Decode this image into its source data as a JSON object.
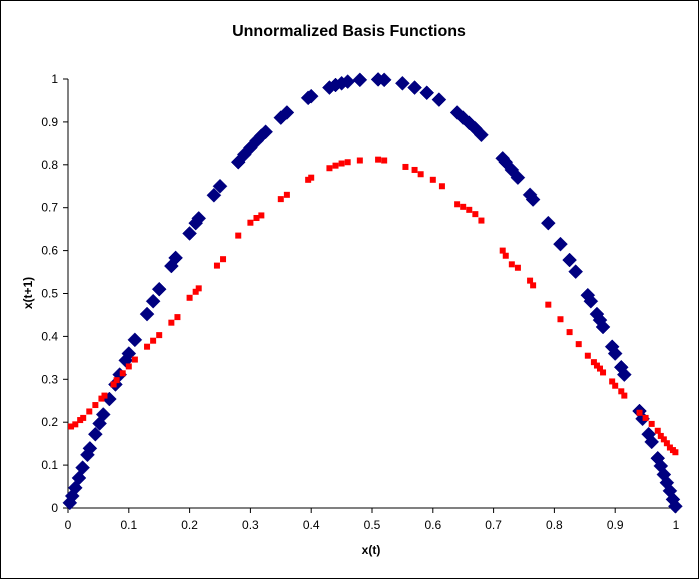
{
  "chart_data": {
    "type": "scatter",
    "title": "Unnormalized Basis Functions",
    "xlabel": "x(t)",
    "ylabel": "x(t+1)",
    "xlim": [
      0,
      1
    ],
    "ylim": [
      0,
      1
    ],
    "x_ticks": [
      "0",
      "0.1",
      "0.2",
      "0.3",
      "0.4",
      "0.5",
      "0.6",
      "0.7",
      "0.8",
      "0.9",
      "1"
    ],
    "y_ticks": [
      "0",
      "0.1",
      "0.2",
      "0.3",
      "0.4",
      "0.5",
      "0.6",
      "0.7",
      "0.8",
      "0.9",
      "1"
    ],
    "grid": false,
    "legend": "none",
    "series": [
      {
        "marker": "diamond",
        "color": "#000080",
        "points": [
          [
            0.003,
            0.012
          ],
          [
            0.007,
            0.028
          ],
          [
            0.012,
            0.047
          ],
          [
            0.018,
            0.07
          ],
          [
            0.024,
            0.094
          ],
          [
            0.032,
            0.124
          ],
          [
            0.036,
            0.139
          ],
          [
            0.045,
            0.172
          ],
          [
            0.052,
            0.197
          ],
          [
            0.058,
            0.218
          ],
          [
            0.068,
            0.254
          ],
          [
            0.078,
            0.288
          ],
          [
            0.085,
            0.311
          ],
          [
            0.095,
            0.344
          ],
          [
            0.1,
            0.36
          ],
          [
            0.11,
            0.392
          ],
          [
            0.13,
            0.452
          ],
          [
            0.14,
            0.482
          ],
          [
            0.15,
            0.51
          ],
          [
            0.17,
            0.564
          ],
          [
            0.177,
            0.583
          ],
          [
            0.2,
            0.64
          ],
          [
            0.21,
            0.664
          ],
          [
            0.215,
            0.675
          ],
          [
            0.24,
            0.729
          ],
          [
            0.25,
            0.75
          ],
          [
            0.28,
            0.806
          ],
          [
            0.29,
            0.824
          ],
          [
            0.3,
            0.84
          ],
          [
            0.31,
            0.856
          ],
          [
            0.318,
            0.868
          ],
          [
            0.325,
            0.877
          ],
          [
            0.35,
            0.91
          ],
          [
            0.36,
            0.922
          ],
          [
            0.395,
            0.956
          ],
          [
            0.4,
            0.96
          ],
          [
            0.43,
            0.98
          ],
          [
            0.44,
            0.986
          ],
          [
            0.45,
            0.99
          ],
          [
            0.46,
            0.994
          ],
          [
            0.48,
            0.998
          ],
          [
            0.51,
            0.999
          ],
          [
            0.52,
            0.998
          ],
          [
            0.55,
            0.99
          ],
          [
            0.57,
            0.98
          ],
          [
            0.59,
            0.968
          ],
          [
            0.61,
            0.952
          ],
          [
            0.64,
            0.922
          ],
          [
            0.65,
            0.91
          ],
          [
            0.66,
            0.898
          ],
          [
            0.67,
            0.885
          ],
          [
            0.68,
            0.87
          ],
          [
            0.715,
            0.815
          ],
          [
            0.72,
            0.806
          ],
          [
            0.73,
            0.788
          ],
          [
            0.74,
            0.77
          ],
          [
            0.76,
            0.73
          ],
          [
            0.765,
            0.719
          ],
          [
            0.79,
            0.664
          ],
          [
            0.81,
            0.615
          ],
          [
            0.825,
            0.578
          ],
          [
            0.835,
            0.551
          ],
          [
            0.855,
            0.496
          ],
          [
            0.86,
            0.482
          ],
          [
            0.87,
            0.452
          ],
          [
            0.875,
            0.438
          ],
          [
            0.88,
            0.422
          ],
          [
            0.895,
            0.376
          ],
          [
            0.9,
            0.36
          ],
          [
            0.91,
            0.328
          ],
          [
            0.915,
            0.311
          ],
          [
            0.94,
            0.226
          ],
          [
            0.945,
            0.208
          ],
          [
            0.955,
            0.172
          ],
          [
            0.96,
            0.154
          ],
          [
            0.97,
            0.116
          ],
          [
            0.975,
            0.098
          ],
          [
            0.98,
            0.078
          ],
          [
            0.985,
            0.059
          ],
          [
            0.99,
            0.04
          ],
          [
            0.995,
            0.02
          ],
          [
            0.999,
            0.004
          ]
        ]
      },
      {
        "marker": "square",
        "color": "#FF0000",
        "points": [
          [
            0.005,
            0.19
          ],
          [
            0.012,
            0.195
          ],
          [
            0.02,
            0.205
          ],
          [
            0.025,
            0.21
          ],
          [
            0.035,
            0.225
          ],
          [
            0.045,
            0.24
          ],
          [
            0.055,
            0.255
          ],
          [
            0.06,
            0.262
          ],
          [
            0.075,
            0.288
          ],
          [
            0.08,
            0.298
          ],
          [
            0.09,
            0.314
          ],
          [
            0.1,
            0.33
          ],
          [
            0.11,
            0.346
          ],
          [
            0.13,
            0.376
          ],
          [
            0.14,
            0.39
          ],
          [
            0.15,
            0.403
          ],
          [
            0.17,
            0.432
          ],
          [
            0.18,
            0.445
          ],
          [
            0.2,
            0.49
          ],
          [
            0.21,
            0.504
          ],
          [
            0.215,
            0.512
          ],
          [
            0.245,
            0.565
          ],
          [
            0.255,
            0.58
          ],
          [
            0.28,
            0.635
          ],
          [
            0.3,
            0.665
          ],
          [
            0.31,
            0.676
          ],
          [
            0.318,
            0.682
          ],
          [
            0.35,
            0.72
          ],
          [
            0.36,
            0.73
          ],
          [
            0.395,
            0.765
          ],
          [
            0.4,
            0.77
          ],
          [
            0.43,
            0.792
          ],
          [
            0.44,
            0.798
          ],
          [
            0.45,
            0.803
          ],
          [
            0.46,
            0.806
          ],
          [
            0.48,
            0.81
          ],
          [
            0.51,
            0.812
          ],
          [
            0.52,
            0.81
          ],
          [
            0.555,
            0.795
          ],
          [
            0.57,
            0.788
          ],
          [
            0.58,
            0.778
          ],
          [
            0.6,
            0.765
          ],
          [
            0.615,
            0.75
          ],
          [
            0.64,
            0.708
          ],
          [
            0.65,
            0.702
          ],
          [
            0.66,
            0.695
          ],
          [
            0.67,
            0.685
          ],
          [
            0.68,
            0.67
          ],
          [
            0.715,
            0.6
          ],
          [
            0.72,
            0.588
          ],
          [
            0.73,
            0.568
          ],
          [
            0.74,
            0.56
          ],
          [
            0.76,
            0.53
          ],
          [
            0.765,
            0.519
          ],
          [
            0.79,
            0.474
          ],
          [
            0.81,
            0.44
          ],
          [
            0.825,
            0.41
          ],
          [
            0.84,
            0.382
          ],
          [
            0.855,
            0.355
          ],
          [
            0.865,
            0.34
          ],
          [
            0.87,
            0.332
          ],
          [
            0.875,
            0.325
          ],
          [
            0.88,
            0.316
          ],
          [
            0.895,
            0.295
          ],
          [
            0.9,
            0.285
          ],
          [
            0.91,
            0.272
          ],
          [
            0.915,
            0.262
          ],
          [
            0.94,
            0.222
          ],
          [
            0.95,
            0.21
          ],
          [
            0.96,
            0.196
          ],
          [
            0.97,
            0.18
          ],
          [
            0.975,
            0.168
          ],
          [
            0.98,
            0.16
          ],
          [
            0.985,
            0.151
          ],
          [
            0.99,
            0.141
          ],
          [
            0.995,
            0.135
          ],
          [
            0.999,
            0.13
          ]
        ]
      }
    ]
  }
}
